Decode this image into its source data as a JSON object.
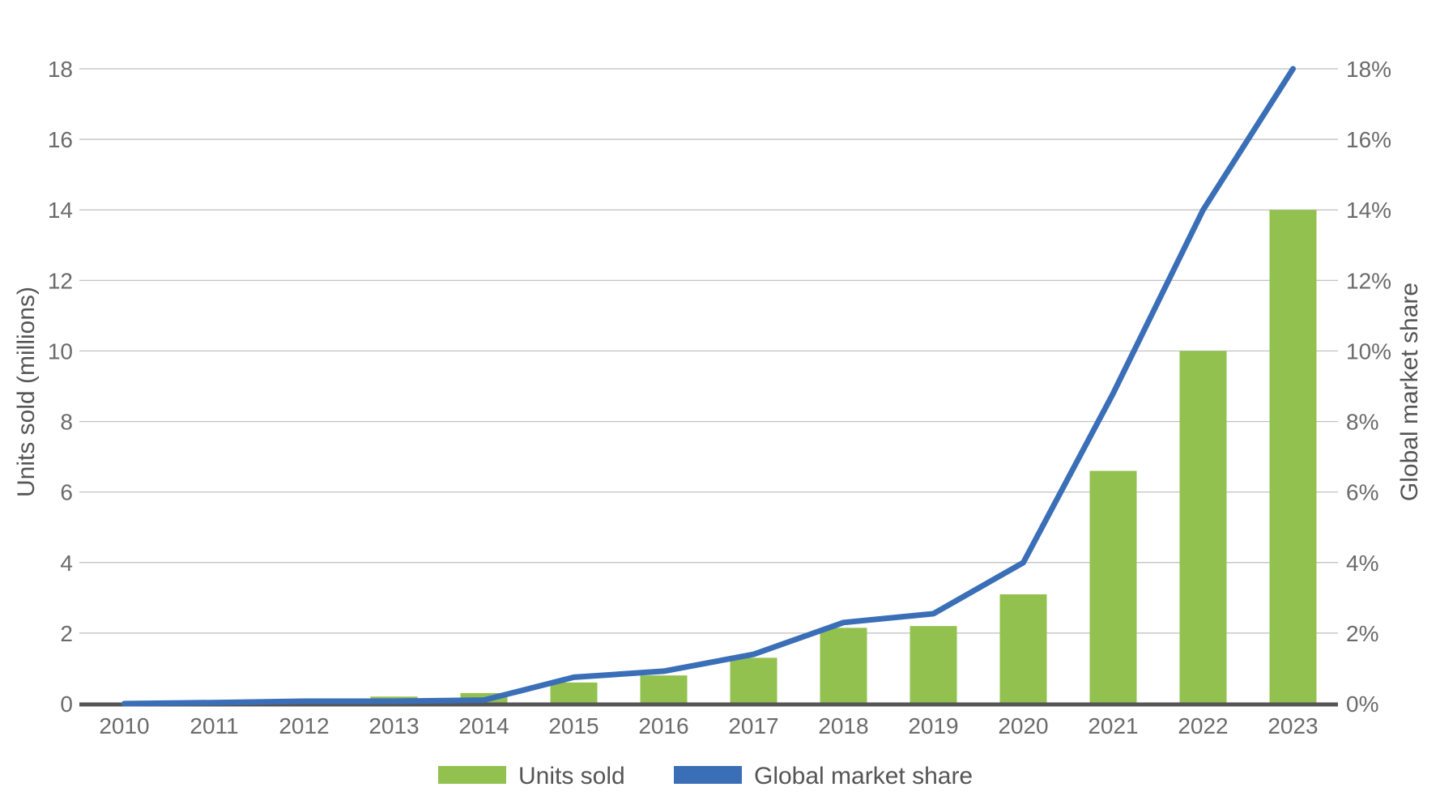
{
  "chart_data": {
    "type": "bar",
    "categories": [
      "2010",
      "2011",
      "2012",
      "2013",
      "2014",
      "2015",
      "2016",
      "2017",
      "2018",
      "2019",
      "2020",
      "2021",
      "2022",
      "2023"
    ],
    "series": [
      {
        "name": "Units sold",
        "kind": "bar",
        "axis": "left",
        "color": "#93c14f",
        "values": [
          0.02,
          0.05,
          0.1,
          0.2,
          0.3,
          0.6,
          0.8,
          1.3,
          2.15,
          2.2,
          3.1,
          6.6,
          10.0,
          14.0
        ]
      },
      {
        "name": "Global market share",
        "kind": "line",
        "axis": "right",
        "color": "#3a6fb8",
        "values": [
          0.0,
          0.03,
          0.07,
          0.07,
          0.1,
          0.75,
          0.92,
          1.4,
          2.3,
          2.55,
          4.0,
          8.8,
          14.0,
          18.0
        ]
      }
    ],
    "ylabel": "Units sold (millions)",
    "y2label": "Global market share",
    "ylim": [
      0,
      18
    ],
    "y2lim": [
      0,
      18
    ],
    "yticks": [
      "0",
      "2",
      "4",
      "6",
      "8",
      "10",
      "12",
      "14",
      "16",
      "18"
    ],
    "y2ticks": [
      "0%",
      "2%",
      "4%",
      "6%",
      "8%",
      "10%",
      "12%",
      "14%",
      "16%",
      "18%"
    ],
    "grid": true,
    "legend_position": "bottom-center"
  }
}
